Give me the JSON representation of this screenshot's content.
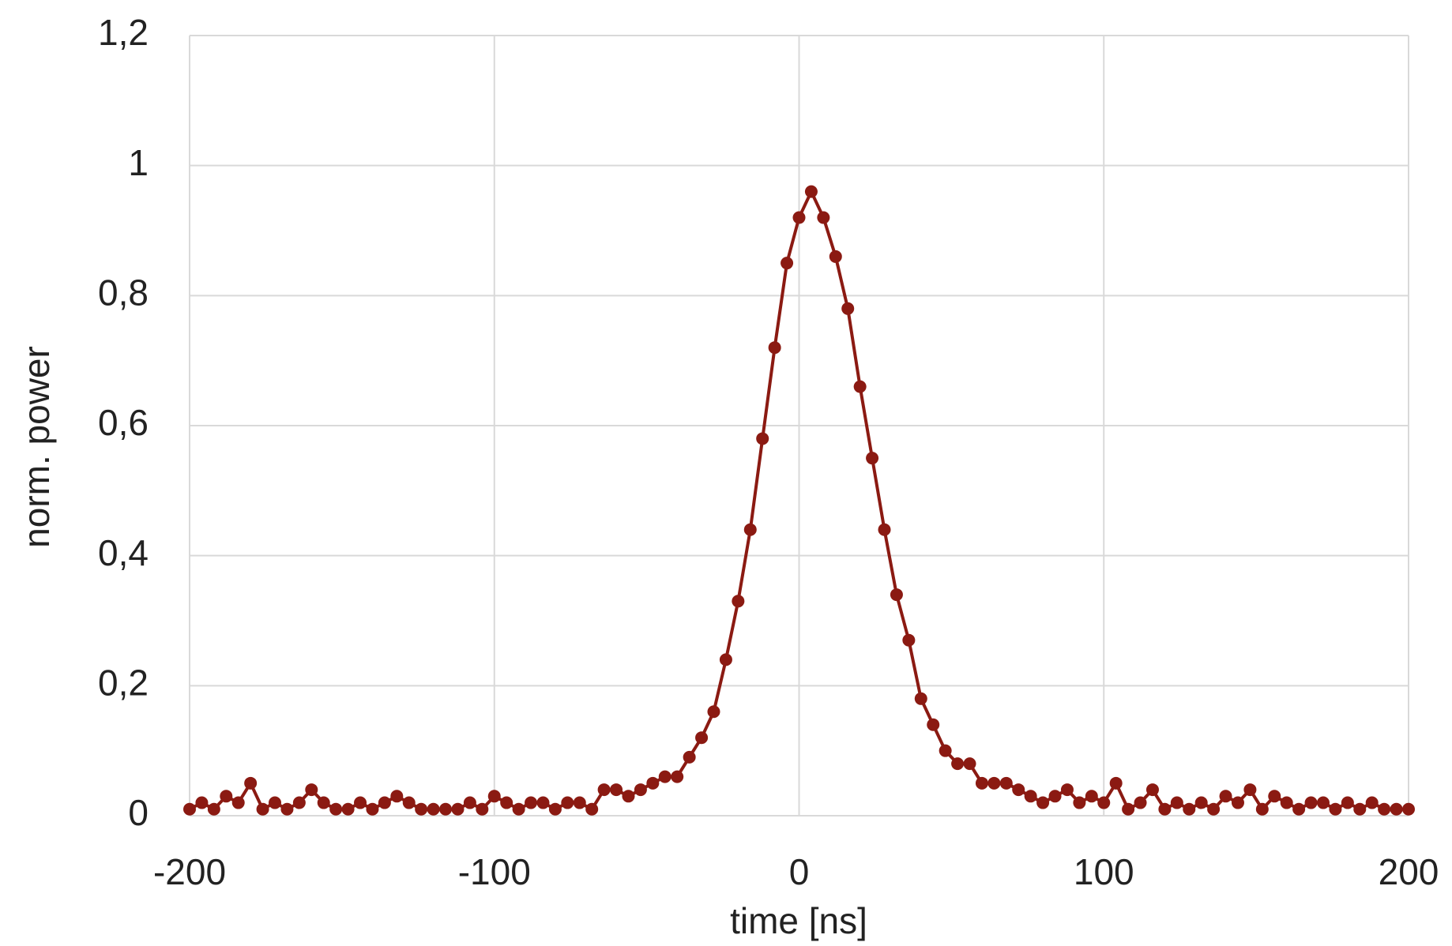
{
  "chart_data": {
    "type": "scatter-line",
    "x_label": "time [ns]",
    "y_label": "norm. power",
    "x": [
      -200,
      -196,
      -192,
      -188,
      -184,
      -180,
      -176,
      -172,
      -168,
      -164,
      -160,
      -156,
      -152,
      -148,
      -144,
      -140,
      -136,
      -132,
      -128,
      -124,
      -120,
      -116,
      -112,
      -108,
      -104,
      -100,
      -96,
      -92,
      -88,
      -84,
      -80,
      -76,
      -72,
      -68,
      -64,
      -60,
      -56,
      -52,
      -48,
      -44,
      -40,
      -36,
      -32,
      -28,
      -24,
      -20,
      -16,
      -12,
      -8,
      -4,
      0,
      4,
      8,
      12,
      16,
      20,
      24,
      28,
      32,
      36,
      40,
      44,
      48,
      52,
      56,
      60,
      64,
      68,
      72,
      76,
      80,
      84,
      88,
      92,
      96,
      100,
      104,
      108,
      112,
      116,
      120,
      124,
      128,
      132,
      136,
      140,
      144,
      148,
      152,
      156,
      160,
      164,
      168,
      172,
      176,
      180,
      184,
      188,
      192,
      196,
      200
    ],
    "values": [
      0.01,
      0.02,
      0.01,
      0.03,
      0.02,
      0.05,
      0.01,
      0.02,
      0.01,
      0.02,
      0.04,
      0.02,
      0.01,
      0.01,
      0.02,
      0.01,
      0.02,
      0.03,
      0.02,
      0.01,
      0.01,
      0.01,
      0.01,
      0.02,
      0.01,
      0.03,
      0.02,
      0.01,
      0.02,
      0.02,
      0.01,
      0.02,
      0.02,
      0.01,
      0.04,
      0.04,
      0.03,
      0.04,
      0.05,
      0.06,
      0.06,
      0.09,
      0.12,
      0.16,
      0.24,
      0.33,
      0.44,
      0.58,
      0.72,
      0.85,
      0.92,
      0.96,
      0.92,
      0.86,
      0.78,
      0.66,
      0.55,
      0.44,
      0.34,
      0.27,
      0.18,
      0.14,
      0.1,
      0.08,
      0.08,
      0.05,
      0.05,
      0.05,
      0.04,
      0.03,
      0.02,
      0.03,
      0.04,
      0.02,
      0.03,
      0.02,
      0.05,
      0.01,
      0.02,
      0.04,
      0.01,
      0.02,
      0.01,
      0.02,
      0.01,
      0.03,
      0.02,
      0.04,
      0.01,
      0.03,
      0.02,
      0.01,
      0.02,
      0.02,
      0.01,
      0.02,
      0.01,
      0.02,
      0.01,
      0.01,
      0.01
    ],
    "color": "#8b1a12",
    "xlim": [
      -200,
      200
    ],
    "xticks": [
      -200,
      -100,
      0,
      100,
      200
    ],
    "ylim": [
      0,
      1.2
    ],
    "yticks": [
      0,
      {
        "value": 0.2,
        "label": "0,2"
      },
      {
        "value": 0.4,
        "label": "0,4"
      },
      {
        "value": 0.6,
        "label": "0,6"
      },
      {
        "value": 0.8,
        "label": "0,8"
      },
      1,
      {
        "value": 1.2,
        "label": "1,2"
      }
    ],
    "grid": true
  }
}
